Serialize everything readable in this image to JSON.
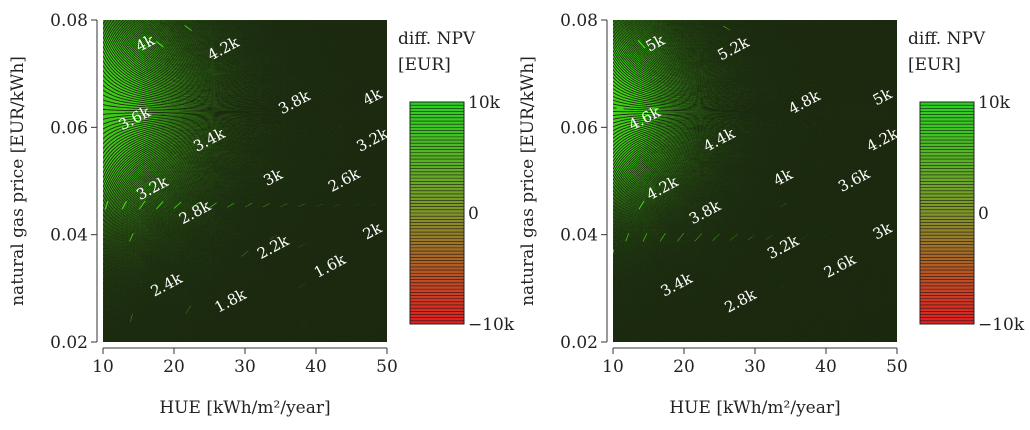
{
  "chart_data": [
    {
      "type": "contour",
      "xlabel": "HUE [kWh/m²/year]",
      "ylabel": "natural gas price [EUR/kWh]",
      "xlim": [
        10,
        50
      ],
      "ylim": [
        0.02,
        0.08
      ],
      "xticks": [
        "10",
        "20",
        "30",
        "40",
        "50"
      ],
      "yticks": [
        "0.02",
        "0.04",
        "0.06",
        "0.08"
      ],
      "colorbar": {
        "title_line1": "diff. NPV",
        "title_line2": "[EUR]",
        "ticks": [
          "10k",
          "0",
          "−10k"
        ],
        "range": [
          -10000,
          10000
        ]
      },
      "field": {
        "base": 3600,
        "price_coef": 110000,
        "hue_coef": -40,
        "interaction": 1100000,
        "gas_ref": 0.0615,
        "hue_ref": 10
      },
      "contour_labels": [
        {
          "text": "4k",
          "x": 16,
          "y": 0.0755
        },
        {
          "text": "4.2k",
          "x": 27,
          "y": 0.0745
        },
        {
          "text": "3.8k",
          "x": 37,
          "y": 0.0645
        },
        {
          "text": "4k",
          "x": 48,
          "y": 0.0655
        },
        {
          "text": "3.6k",
          "x": 14.5,
          "y": 0.0615
        },
        {
          "text": "3.4k",
          "x": 25,
          "y": 0.0575
        },
        {
          "text": "3.2k",
          "x": 48,
          "y": 0.0575
        },
        {
          "text": "3k",
          "x": 34,
          "y": 0.0505
        },
        {
          "text": "3.2k",
          "x": 17,
          "y": 0.0485
        },
        {
          "text": "2.6k",
          "x": 44,
          "y": 0.05
        },
        {
          "text": "2.8k",
          "x": 23,
          "y": 0.044
        },
        {
          "text": "2k",
          "x": 48,
          "y": 0.0405
        },
        {
          "text": "2.2k",
          "x": 34,
          "y": 0.0375
        },
        {
          "text": "1.6k",
          "x": 42,
          "y": 0.034
        },
        {
          "text": "2.4k",
          "x": 19,
          "y": 0.0305
        },
        {
          "text": "1.8k",
          "x": 28,
          "y": 0.0275
        }
      ]
    },
    {
      "type": "contour",
      "xlabel": "HUE [kWh/m²/year]",
      "ylabel": "natural gas price [EUR/kWh]",
      "xlim": [
        10,
        50
      ],
      "ylim": [
        0.02,
        0.08
      ],
      "xticks": [
        "10",
        "20",
        "30",
        "40",
        "50"
      ],
      "yticks": [
        "0.02",
        "0.04",
        "0.06",
        "0.08"
      ],
      "colorbar": {
        "title_line1": "diff. NPV",
        "title_line2": "[EUR]",
        "ticks": [
          "10k",
          "0",
          "−10k"
        ],
        "range": [
          -10000,
          10000
        ]
      },
      "field": {
        "base": 4600,
        "price_coef": 140000,
        "hue_coef": -45,
        "interaction": 1300000,
        "gas_ref": 0.0615,
        "hue_ref": 10
      },
      "contour_labels": [
        {
          "text": "5k",
          "x": 16,
          "y": 0.0755
        },
        {
          "text": "5.2k",
          "x": 27,
          "y": 0.0745
        },
        {
          "text": "4.8k",
          "x": 37,
          "y": 0.0645
        },
        {
          "text": "5k",
          "x": 48,
          "y": 0.0655
        },
        {
          "text": "4.6k",
          "x": 14.5,
          "y": 0.0615
        },
        {
          "text": "4.4k",
          "x": 25,
          "y": 0.0575
        },
        {
          "text": "4.2k",
          "x": 48,
          "y": 0.0575
        },
        {
          "text": "4k",
          "x": 34,
          "y": 0.0505
        },
        {
          "text": "4.2k",
          "x": 17,
          "y": 0.0485
        },
        {
          "text": "3.6k",
          "x": 44,
          "y": 0.05
        },
        {
          "text": "3.8k",
          "x": 23,
          "y": 0.044
        },
        {
          "text": "3k",
          "x": 48,
          "y": 0.0405
        },
        {
          "text": "3.2k",
          "x": 34,
          "y": 0.0375
        },
        {
          "text": "2.6k",
          "x": 42,
          "y": 0.034
        },
        {
          "text": "3.4k",
          "x": 19,
          "y": 0.0305
        },
        {
          "text": "2.8k",
          "x": 28,
          "y": 0.0275
        }
      ]
    }
  ]
}
